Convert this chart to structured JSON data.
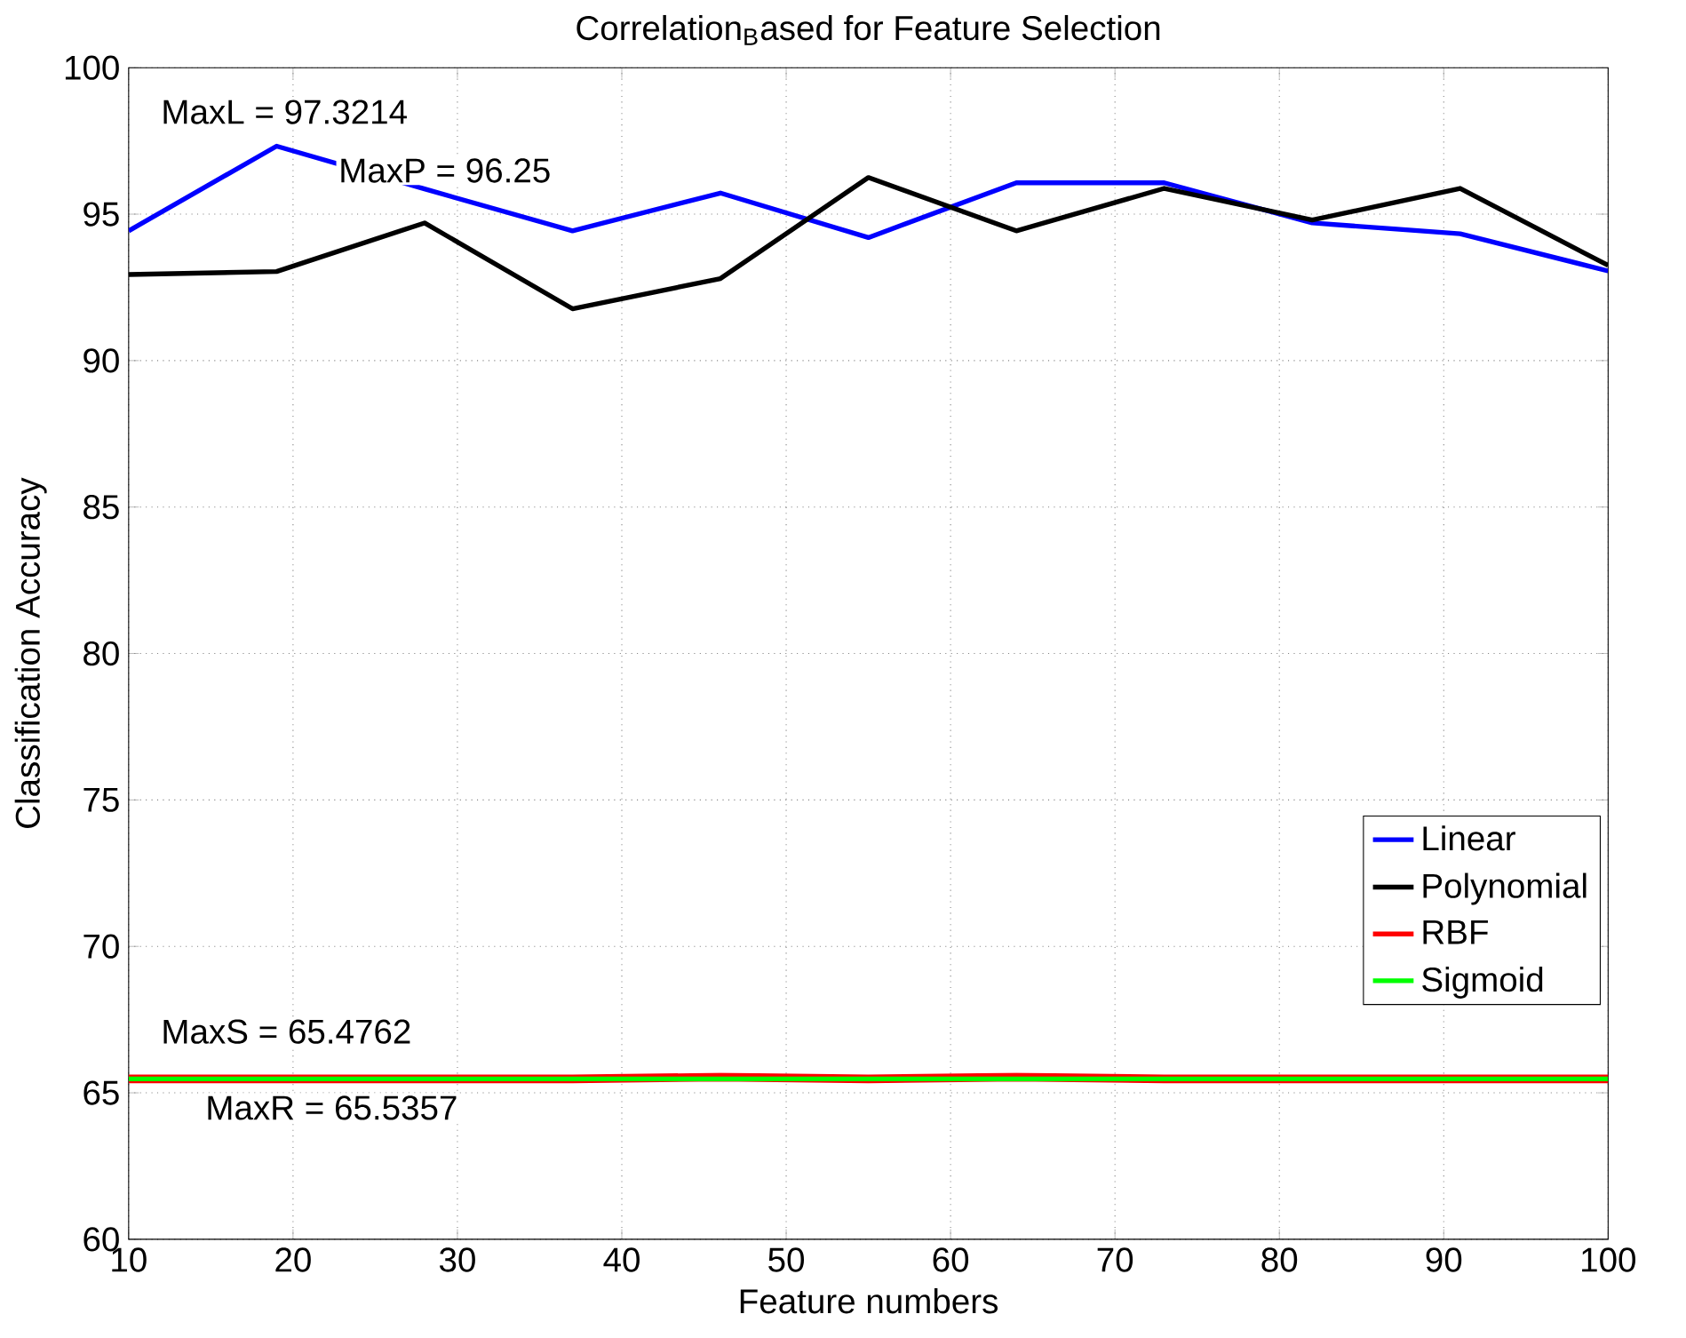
{
  "chart_data": {
    "type": "line",
    "title": "Correlation$_{B}$ased for Feature Selection",
    "xlabel": "Feature numbers",
    "ylabel": "Classification Accuracy",
    "x": [
      10,
      19,
      28,
      37,
      46,
      55,
      64,
      73,
      82,
      91,
      100
    ],
    "series": [
      {
        "name": "Linear",
        "color": "#0000ff",
        "values": [
          94.43,
          97.3214,
          95.86,
          94.43,
          95.72,
          94.2,
          96.07,
          96.07,
          94.7,
          94.33,
          93.06
        ]
      },
      {
        "name": "Polynomial",
        "color": "#000000",
        "values": [
          92.94,
          93.04,
          94.7,
          91.77,
          92.8,
          96.25,
          94.43,
          95.88,
          94.8,
          95.88,
          93.25
        ]
      },
      {
        "name": "RBF",
        "color": "#ff0000",
        "values": [
          65.4762,
          65.4762,
          65.4762,
          65.4762,
          65.5357,
          65.4762,
          65.5357,
          65.4762,
          65.4762,
          65.4762,
          65.4762
        ]
      },
      {
        "name": "Sigmoid",
        "color": "#00ff00",
        "values": [
          65.4762,
          65.4762,
          65.4762,
          65.4762,
          65.4762,
          65.4762,
          65.4762,
          65.4762,
          65.4762,
          65.4762,
          65.4762
        ]
      }
    ],
    "annotations": [
      "MaxL = 97.3214",
      "MaxP = 96.25",
      "MaxS = 65.4762",
      "MaxR = 65.5357"
    ],
    "xlim": [
      10,
      100
    ],
    "ylim": [
      60,
      100
    ],
    "xticks": [
      10,
      20,
      30,
      40,
      50,
      60,
      70,
      80,
      90,
      100
    ],
    "yticks": [
      60,
      65,
      70,
      75,
      80,
      85,
      90,
      95,
      100
    ],
    "grid": true,
    "legend": "bottom right",
    "line_style": "solid",
    "marker": "none"
  }
}
